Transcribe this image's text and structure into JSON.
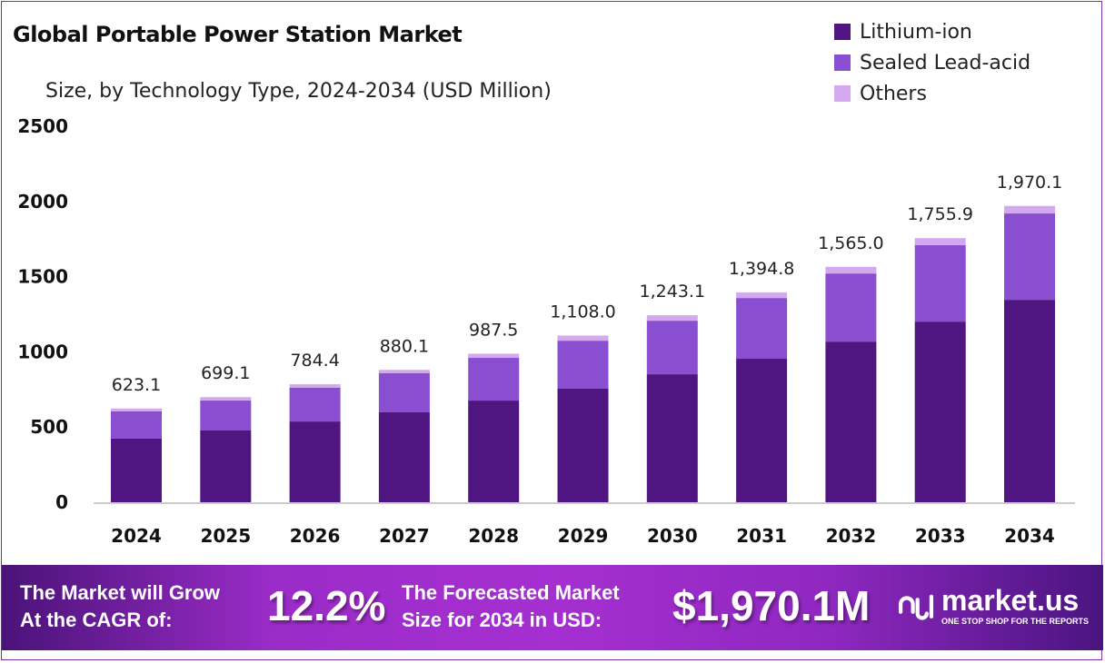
{
  "chart_data": {
    "type": "bar",
    "stacked": true,
    "title": "Global Portable Power Station Market",
    "subtitle": "Size, by Technology Type, 2024-2034 (USD Million)",
    "categories": [
      "2024",
      "2025",
      "2026",
      "2027",
      "2028",
      "2029",
      "2030",
      "2031",
      "2032",
      "2033",
      "2034"
    ],
    "series": [
      {
        "name": "Lithium-ion",
        "color": "#4f1681",
        "values": [
          423,
          477,
          537,
          598,
          676,
          755,
          851,
          954,
          1068,
          1201,
          1346
        ]
      },
      {
        "name": "Sealed Lead-acid",
        "color": "#8a4fd0",
        "values": [
          181,
          199,
          224,
          261,
          284,
          319,
          356,
          404,
          453,
          509,
          574
        ]
      },
      {
        "name": "Others",
        "color": "#d3a8ee",
        "values": [
          19.1,
          23.1,
          23.4,
          21.1,
          27.5,
          34.0,
          36.1,
          36.8,
          44.0,
          45.9,
          50.1
        ]
      }
    ],
    "totals_labels": [
      "623.1",
      "699.1",
      "784.4",
      "880.1",
      "987.5",
      "1,108.0",
      "1,243.1",
      "1,394.8",
      "1,565.0",
      "1,755.9",
      "1,970.1"
    ],
    "totals": [
      623.1,
      699.1,
      784.4,
      880.1,
      987.5,
      1108.0,
      1243.1,
      1394.8,
      1565.0,
      1755.9,
      1970.1
    ],
    "ylim": [
      0,
      2500
    ],
    "yticks": [
      "0",
      "500",
      "1000",
      "1500",
      "2000",
      "2500"
    ],
    "ytick_values": [
      0,
      500,
      1000,
      1500,
      2000,
      2500
    ],
    "grid": false,
    "legend_position": "top-right"
  },
  "banner": {
    "cagr_text_1": "The Market will Grow",
    "cagr_text_2": "At the CAGR of:",
    "cagr_value": "12.2%",
    "forecast_text_1": "The Forecasted Market",
    "forecast_text_2": "Size for 2034 in USD:",
    "forecast_value": "$1,970.1M",
    "logo_name": "market.us",
    "logo_tagline": "ONE STOP SHOP FOR THE REPORTS"
  }
}
